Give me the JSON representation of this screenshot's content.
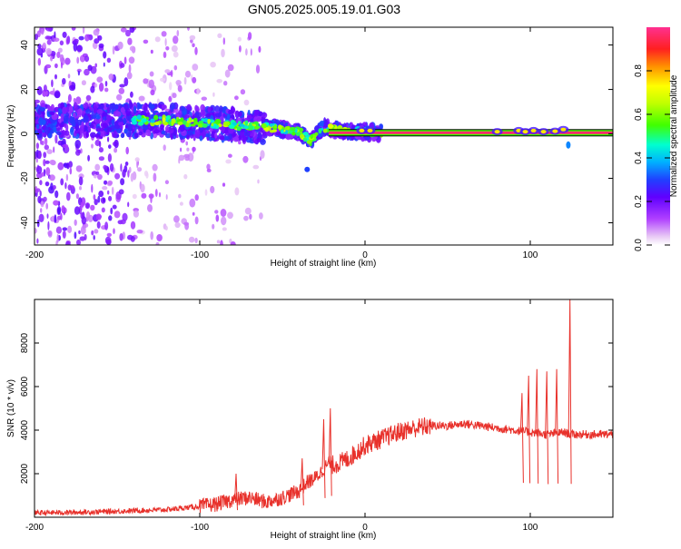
{
  "title": "GN05.2025.005.19.01.G03",
  "chart_data": [
    {
      "type": "heatmap",
      "xlabel": "Height of straight line (km)",
      "ylabel": "Frequency (Hz)",
      "xlim": [
        -200,
        150
      ],
      "ylim": [
        -50,
        48
      ],
      "xticks": [
        -200,
        -100,
        0,
        100
      ],
      "yticks": [
        -40,
        -20,
        0,
        20,
        40
      ],
      "grid": false,
      "ridge": {
        "description_x": [
          -200,
          -150,
          -120,
          -100,
          -80,
          -60,
          -40,
          -33,
          -25,
          -20,
          -10,
          0,
          10,
          50,
          80,
          100,
          115,
          122,
          125,
          150
        ],
        "freq_hz": [
          6,
          6,
          6,
          5,
          4,
          3,
          1,
          -3,
          3,
          2,
          1,
          1,
          0.5,
          0.5,
          0.5,
          0.5,
          1,
          -5,
          0.5,
          0.5
        ]
      },
      "colorbar": {
        "label": "Normalized spectral amplitude",
        "range": [
          0,
          1
        ],
        "ticks": [
          0.0,
          0.2,
          0.4,
          0.6,
          0.8
        ],
        "tick_labels": [
          "0.0",
          "0.2",
          "0.4",
          "0.6",
          "0.8"
        ]
      }
    },
    {
      "type": "line",
      "xlabel": "Height of straight line (km)",
      "ylabel": "SNR (10 * v/v)",
      "xlim": [
        -200,
        150
      ],
      "ylim": [
        0,
        10000
      ],
      "xticks": [
        -200,
        -100,
        0,
        100
      ],
      "yticks": [
        2000,
        4000,
        6000,
        8000
      ],
      "grid": false,
      "color": "#e8312b",
      "series": [
        {
          "name": "SNR",
          "x": [
            -200,
            -180,
            -160,
            -140,
            -120,
            -100,
            -90,
            -80,
            -70,
            -60,
            -50,
            -40,
            -35,
            -30,
            -25,
            -22,
            -20,
            -15,
            -10,
            -5,
            0,
            10,
            20,
            30,
            40,
            50,
            60,
            70,
            80,
            90,
            100,
            110,
            120,
            125,
            130,
            140,
            150
          ],
          "y": [
            200,
            220,
            250,
            300,
            350,
            500,
            600,
            800,
            900,
            700,
            900,
            1200,
            1600,
            1800,
            2200,
            2500,
            2400,
            2500,
            2700,
            3000,
            3300,
            3600,
            3900,
            4100,
            4200,
            4200,
            4300,
            4200,
            4100,
            4000,
            3900,
            3800,
            3900,
            3800,
            3800,
            3800,
            3800
          ]
        }
      ],
      "spikes": [
        {
          "x": -78,
          "y": 2000
        },
        {
          "x": -38,
          "y": 2700
        },
        {
          "x": -25,
          "y": 4500
        },
        {
          "x": -21,
          "y": 5000
        },
        {
          "x": 95,
          "y": 5700
        },
        {
          "x": 99,
          "y": 6500
        },
        {
          "x": 104,
          "y": 6800
        },
        {
          "x": 110,
          "y": 6700
        },
        {
          "x": 116,
          "y": 6800
        },
        {
          "x": 124,
          "y": 10000
        }
      ]
    }
  ]
}
